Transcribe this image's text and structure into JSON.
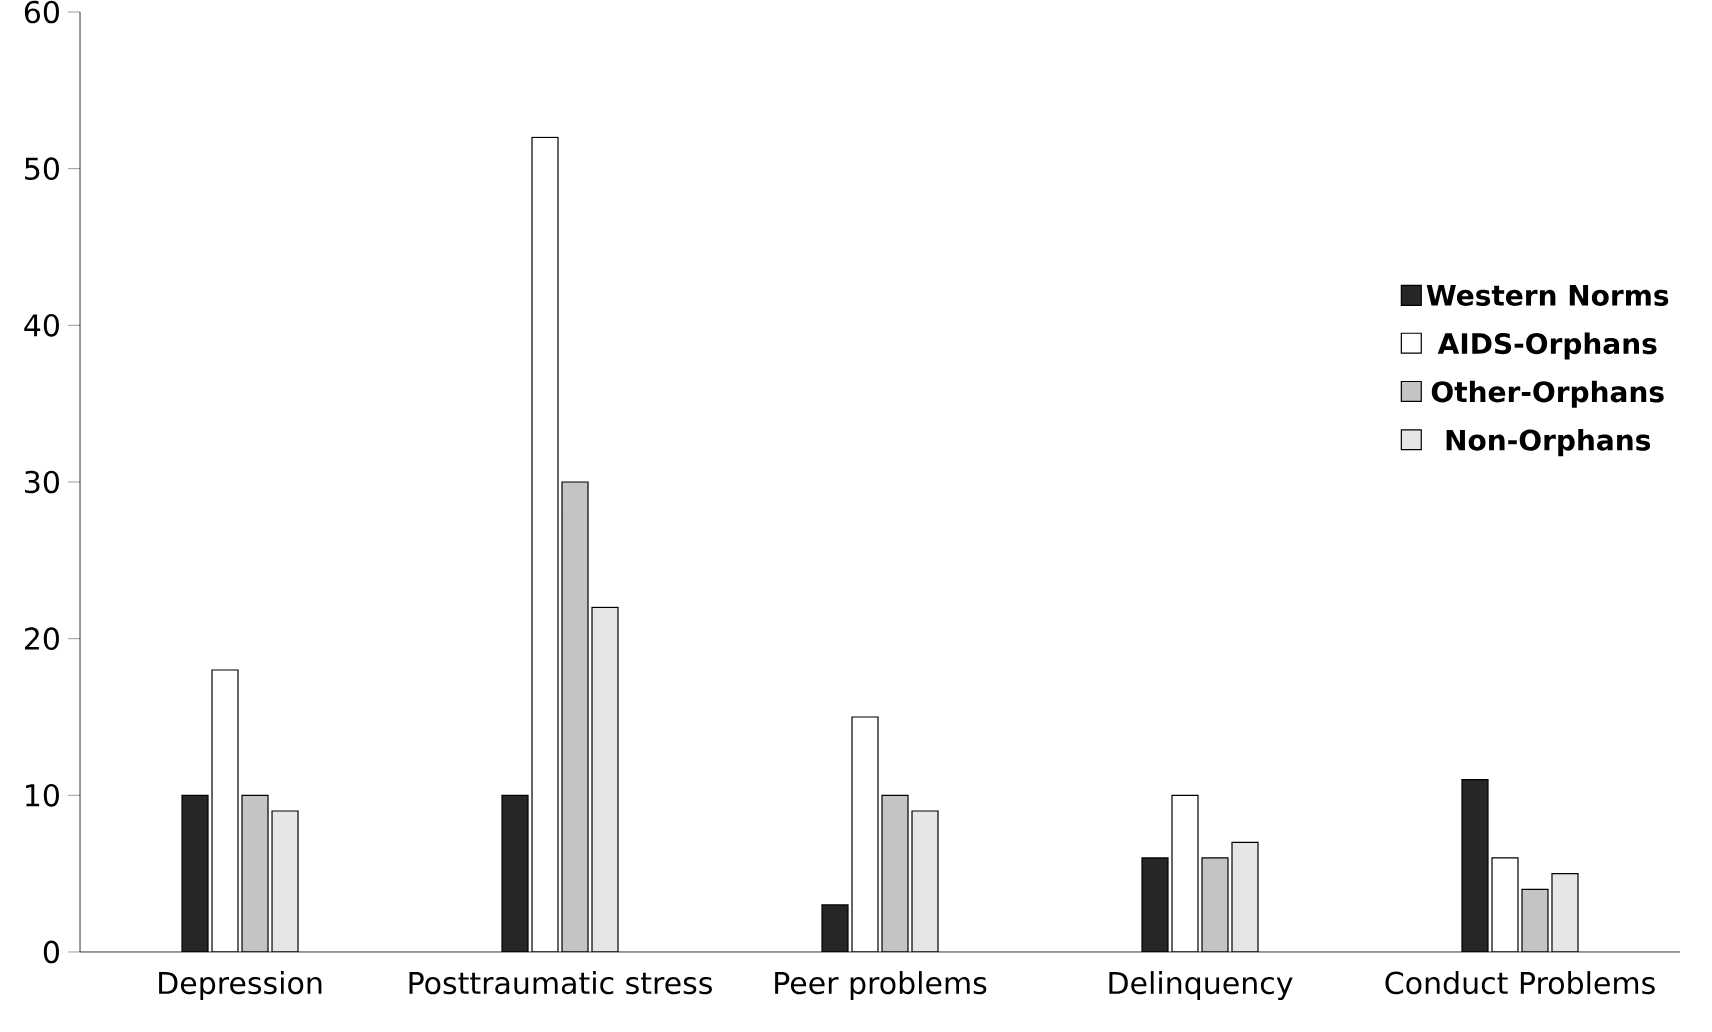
{
  "chart_data": {
    "type": "bar",
    "categories": [
      "Depression",
      "Posttraumatic stress",
      "Peer problems",
      "Delinquency",
      "Conduct Problems"
    ],
    "series": [
      {
        "name": "Western Norms",
        "color": "#262626",
        "values": [
          10,
          10,
          3,
          6,
          11
        ]
      },
      {
        "name": "AIDS-Orphans",
        "color": "#ffffff",
        "values": [
          18,
          52,
          15,
          10,
          6
        ]
      },
      {
        "name": "Other-Orphans",
        "color": "#c4c4c4",
        "values": [
          10,
          30,
          10,
          6,
          4
        ]
      },
      {
        "name": "Non-Orphans",
        "color": "#e6e6e6",
        "values": [
          9,
          22,
          9,
          7,
          5
        ]
      }
    ],
    "ylim": [
      0,
      60
    ],
    "yticks": [
      0,
      10,
      20,
      30,
      40,
      50,
      60
    ],
    "legend": "right"
  }
}
